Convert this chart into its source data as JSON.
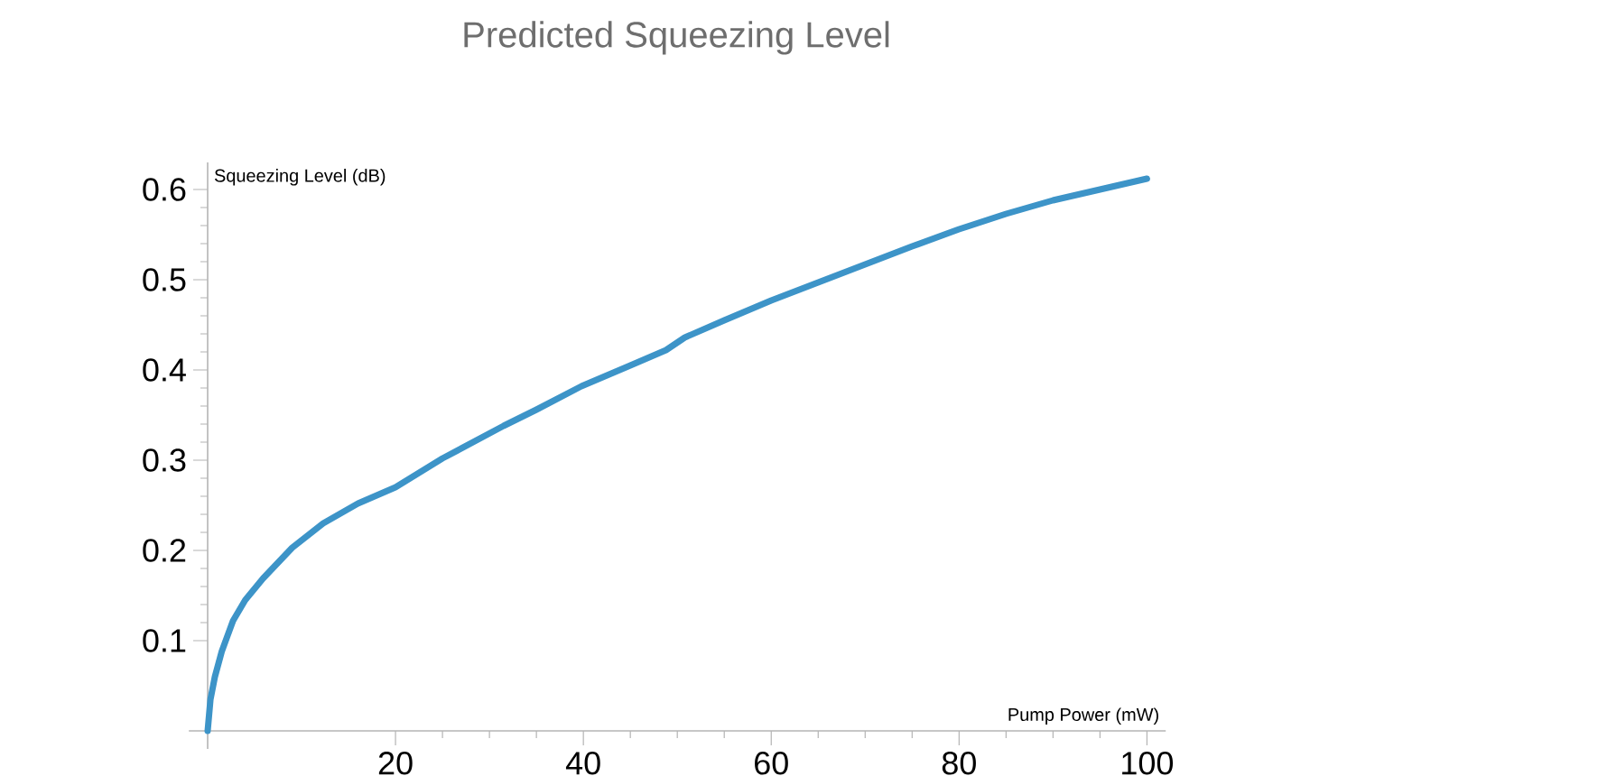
{
  "chart_data": {
    "type": "line",
    "title": "Predicted Squeezing Level",
    "xlabel": "Pump Power (mW)",
    "ylabel": "Squeezing Level (dB)",
    "x": [
      0,
      0.3,
      0.77,
      1.5,
      2.7,
      4,
      5.9,
      9,
      12.3,
      16,
      20,
      25,
      31.5,
      35,
      39.8,
      45,
      48.8,
      50.8,
      55,
      60,
      65,
      70,
      75,
      80,
      85,
      90,
      95,
      100
    ],
    "series": [
      {
        "color": "#3d94c8",
        "values": [
          0,
          0.035,
          0.06,
          0.088,
          0.122,
          0.145,
          0.169,
          0.203,
          0.23,
          0.252,
          0.27,
          0.302,
          0.338,
          0.356,
          0.382,
          0.405,
          0.422,
          0.436,
          0.455,
          0.477,
          0.497,
          0.517,
          0.537,
          0.556,
          0.573,
          0.588,
          0.6,
          0.612
        ]
      }
    ],
    "xlim": [
      -2,
      102
    ],
    "ylim": [
      -0.02,
      0.63
    ],
    "xticks": [
      20,
      40,
      60,
      80,
      100
    ],
    "yticks": [
      0.1,
      0.2,
      0.3,
      0.4,
      0.5,
      0.6
    ]
  }
}
